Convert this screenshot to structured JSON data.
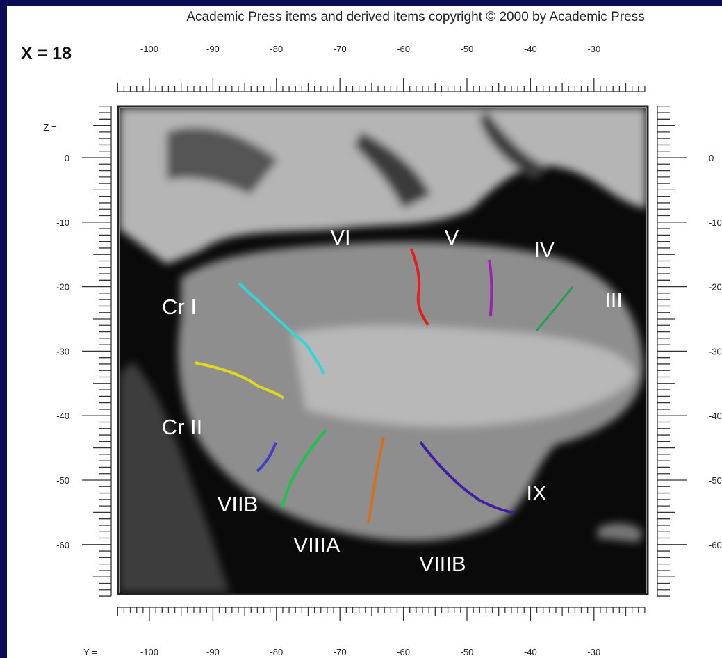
{
  "header": {
    "copyright": "Academic Press items and derived items copyright © 2000 by Academic Press",
    "slice": "X = 18"
  },
  "rulers": {
    "top": {
      "ticks": [
        -100,
        -90,
        -80,
        -70,
        -60,
        -50,
        -40,
        -30
      ]
    },
    "bottom": {
      "axis_label": "Y =",
      "ticks": [
        -100,
        -90,
        -80,
        -70,
        -60,
        -50,
        -40,
        -30
      ]
    },
    "left": {
      "axis_label": "Z =",
      "ticks": [
        0,
        -10,
        -20,
        -30,
        -40,
        -50,
        -60
      ]
    },
    "right": {
      "ticks": [
        0,
        -10,
        -20,
        -30,
        -40,
        -50,
        -60
      ]
    }
  },
  "regions": [
    {
      "label": "VI"
    },
    {
      "label": "V"
    },
    {
      "label": "IV"
    },
    {
      "label": "III"
    },
    {
      "label": "Cr I"
    },
    {
      "label": "Cr II"
    },
    {
      "label": "VIIB"
    },
    {
      "label": "VIIIA"
    },
    {
      "label": "VIIIB"
    },
    {
      "label": "IX"
    }
  ]
}
